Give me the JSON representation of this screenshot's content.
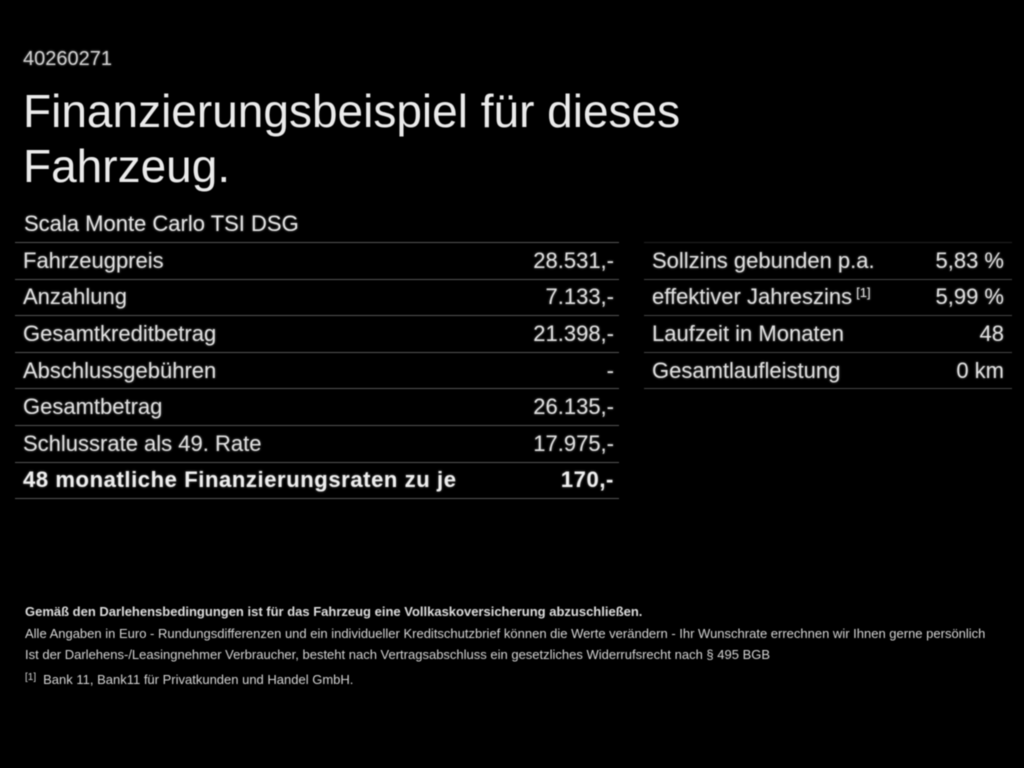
{
  "page": {
    "background_color": "#000000",
    "text_color": "#e6e6e6",
    "reference_number": "40260271",
    "title_line1": "Finanzierungsbeispiel für dieses",
    "title_line2": "Fahrzeug.",
    "vehicle_model": "Scala Monte Carlo TSI DSG"
  },
  "finance_table": {
    "rows": [
      {
        "label": "Fahrzeugpreis",
        "value": "28.531,-"
      },
      {
        "label": "Anzahlung",
        "value": "7.133,-"
      },
      {
        "label": "Gesamtkreditbetrag",
        "value": "21.398,-"
      },
      {
        "label": "Abschlussgebühren",
        "value": "-"
      },
      {
        "label": "Gesamtbetrag",
        "value": "26.135,-"
      },
      {
        "label": "Schlussrate als 49. Rate",
        "value": "17.975,-"
      },
      {
        "label": "48 monatliche Finanzierungsraten zu je",
        "value": "170,-"
      }
    ]
  },
  "conditions_table": {
    "rows": [
      {
        "label": "Sollzins gebunden p.a.",
        "value": "5,83 %"
      },
      {
        "label": "effektiver Jahreszins",
        "sup": "[1]",
        "value": "5,99 %"
      },
      {
        "label": "Laufzeit in Monaten",
        "value": "48"
      },
      {
        "label": "Gesamtlaufleistung",
        "value": "0 km"
      }
    ]
  },
  "footnotes": {
    "insurance": "Gemäß den Darlehensbedingungen ist für das Fahrzeug eine Vollkaskoversicherung abzuschließen.",
    "disclaimer1": "Alle Angaben in Euro - Rundungsdifferenzen und ein individueller Kreditschutzbrief können die Werte verändern - Ihr Wunschrate errechnen wir Ihnen gerne persönlich",
    "disclaimer2": "Ist der Darlehens-/Leasingnehmer Verbraucher, besteht nach Vertragsabschluss ein gesetzliches Widerrufsrecht nach § 495 BGB",
    "bank_marker": "[1]",
    "bank": "Bank 11, Bank11 für Privatkunden und Handel GmbH."
  }
}
